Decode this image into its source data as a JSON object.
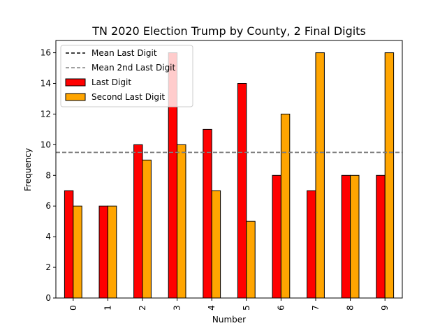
{
  "chart_data": {
    "type": "bar",
    "title": "TN 2020 Election Trump by County, 2 Final Digits",
    "xlabel": "Number",
    "ylabel": "Frequency",
    "categories": [
      "0",
      "1",
      "2",
      "3",
      "4",
      "5",
      "6",
      "7",
      "8",
      "9"
    ],
    "series": [
      {
        "name": "Last Digit",
        "color": "#ff0000",
        "values": [
          7,
          6,
          10,
          16,
          11,
          14,
          8,
          7,
          8,
          8
        ]
      },
      {
        "name": "Second Last Digit",
        "color": "#ffa500",
        "values": [
          6,
          6,
          9,
          10,
          7,
          5,
          12,
          16,
          8,
          16
        ]
      }
    ],
    "reference_lines": [
      {
        "name": "Mean Last Digit",
        "value": 9.5,
        "color": "#000000",
        "style": "dashed"
      },
      {
        "name": "Mean 2nd Last Digit",
        "value": 9.5,
        "color": "#808080",
        "style": "dashed"
      }
    ],
    "ylim": [
      0,
      16.8
    ],
    "yticks": [
      0,
      2,
      4,
      6,
      8,
      10,
      12,
      14,
      16
    ],
    "grid": false,
    "legend_position": "top-left"
  }
}
